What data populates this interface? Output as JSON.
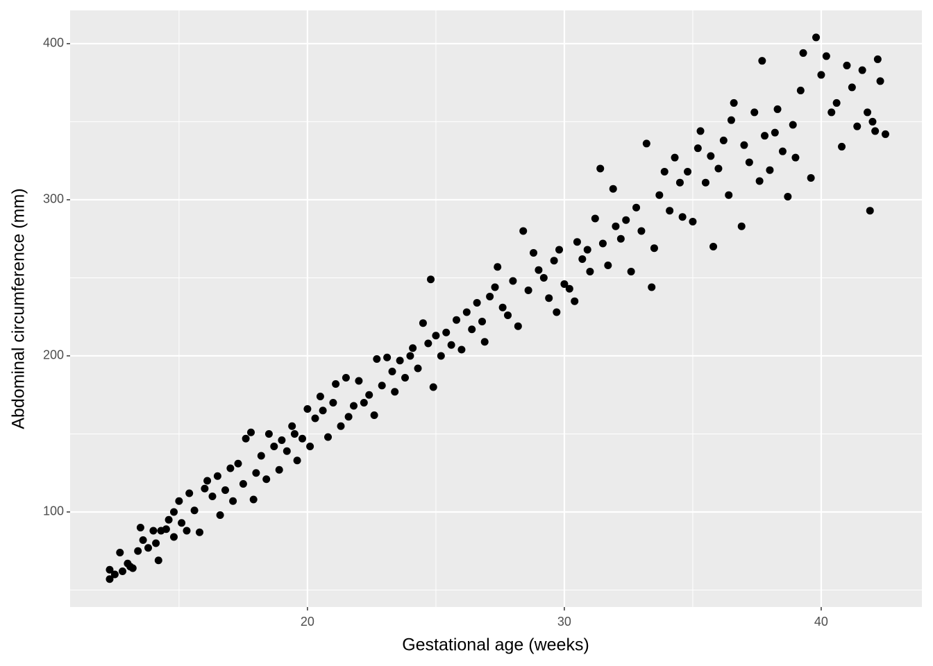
{
  "chart_data": {
    "type": "scatter",
    "x_label": "Gestational age (weeks)",
    "y_label": "Abdominal circumference (mm)",
    "xlim": [
      10.76,
      43.92
    ],
    "ylim": [
      39.1,
      421.3
    ],
    "xticks": [
      20,
      30,
      40
    ],
    "yticks": [
      100,
      200,
      300,
      400
    ],
    "xminor": [
      15,
      25,
      35
    ],
    "yminor": [
      50,
      150,
      250,
      350
    ],
    "grid": true,
    "color": "#000000",
    "x": [
      12.3,
      12.3,
      12.5,
      12.7,
      12.8,
      13.0,
      13.1,
      13.2,
      13.4,
      13.5,
      13.6,
      13.8,
      14.0,
      14.1,
      14.2,
      14.3,
      14.5,
      14.6,
      14.8,
      14.8,
      15.0,
      15.1,
      15.3,
      15.4,
      15.6,
      15.8,
      16.0,
      16.1,
      16.3,
      16.5,
      16.6,
      16.8,
      17.0,
      17.1,
      17.3,
      17.5,
      17.6,
      17.8,
      17.9,
      18.0,
      18.2,
      18.4,
      18.5,
      18.7,
      18.9,
      19.0,
      19.2,
      19.4,
      19.5,
      19.6,
      19.8,
      20.0,
      20.1,
      20.3,
      20.5,
      20.6,
      20.8,
      21.0,
      21.1,
      21.3,
      21.5,
      21.6,
      21.8,
      22.0,
      22.2,
      22.4,
      22.6,
      22.7,
      22.9,
      23.1,
      23.3,
      23.4,
      23.6,
      23.8,
      24.0,
      24.1,
      24.3,
      24.5,
      24.7,
      24.8,
      24.9,
      25.0,
      25.2,
      25.4,
      25.6,
      25.8,
      26.0,
      26.2,
      26.4,
      26.6,
      26.8,
      26.9,
      27.1,
      27.3,
      27.4,
      27.6,
      27.8,
      28.0,
      28.2,
      28.4,
      28.6,
      28.8,
      29.0,
      29.2,
      29.4,
      29.6,
      29.7,
      29.8,
      30.0,
      30.2,
      30.4,
      30.5,
      30.7,
      30.9,
      31.0,
      31.2,
      31.4,
      31.5,
      31.7,
      31.9,
      32.0,
      32.2,
      32.4,
      32.6,
      32.8,
      33.0,
      33.2,
      33.4,
      33.5,
      33.7,
      33.9,
      34.1,
      34.3,
      34.5,
      34.6,
      34.8,
      35.0,
      35.2,
      35.3,
      35.5,
      35.7,
      35.8,
      36.0,
      36.2,
      36.4,
      36.5,
      36.6,
      36.9,
      37.0,
      37.2,
      37.4,
      37.6,
      37.7,
      37.8,
      38.0,
      38.2,
      38.3,
      38.5,
      38.7,
      38.9,
      39.0,
      39.2,
      39.3,
      39.6,
      39.8,
      40.0,
      40.2,
      40.4,
      40.6,
      40.8,
      41.0,
      41.2,
      41.4,
      41.6,
      41.8,
      41.9,
      42.0,
      42.2,
      42.3,
      42.5,
      42.1
    ],
    "y": [
      57,
      63,
      60,
      74,
      62,
      67,
      65,
      64,
      75,
      90,
      82,
      77,
      88,
      80,
      69,
      88,
      89,
      95,
      100,
      84,
      107,
      93,
      88,
      112,
      101,
      87,
      115,
      120,
      110,
      123,
      98,
      114,
      128,
      107,
      131,
      118,
      147,
      151,
      108,
      125,
      136,
      121,
      150,
      142,
      127,
      146,
      139,
      155,
      150,
      133,
      147,
      166,
      142,
      160,
      174,
      165,
      148,
      170,
      182,
      155,
      186,
      161,
      168,
      184,
      170,
      175,
      162,
      198,
      181,
      199,
      190,
      177,
      197,
      186,
      200,
      205,
      192,
      221,
      208,
      249,
      180,
      213,
      200,
      215,
      207,
      223,
      204,
      228,
      217,
      234,
      222,
      209,
      238,
      244,
      257,
      231,
      226,
      248,
      219,
      280,
      242,
      266,
      255,
      250,
      237,
      261,
      228,
      268,
      246,
      243,
      235,
      273,
      262,
      268,
      254,
      288,
      320,
      272,
      258,
      307,
      283,
      275,
      287,
      254,
      295,
      280,
      336,
      244,
      269,
      303,
      318,
      293,
      327,
      311,
      289,
      318,
      286,
      333,
      344,
      311,
      328,
      270,
      320,
      338,
      303,
      351,
      362,
      283,
      335,
      324,
      356,
      312,
      389,
      341,
      319,
      343,
      358,
      331,
      302,
      348,
      327,
      370,
      394,
      314,
      404,
      380,
      392,
      356,
      362,
      334,
      386,
      372,
      347,
      383,
      356,
      293,
      350,
      390,
      376,
      342,
      344
    ]
  }
}
